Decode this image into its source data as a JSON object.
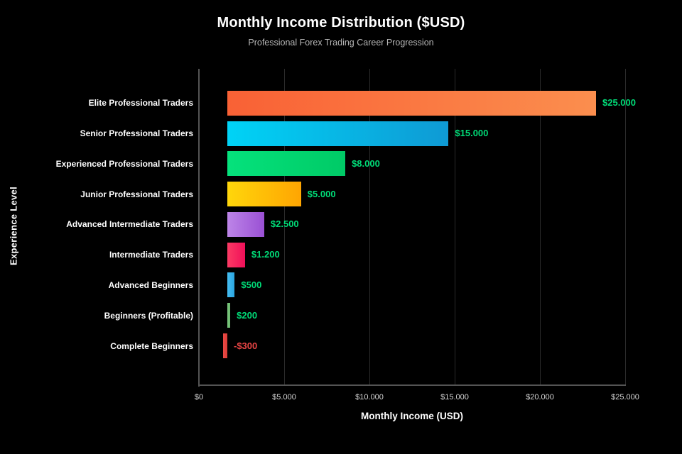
{
  "chart_data": {
    "type": "bar",
    "orientation": "horizontal",
    "title": "Monthly Income Distribution ($USD)",
    "subtitle": "Professional Forex Trading Career Progression",
    "xlabel": "Monthly Income (USD)",
    "ylabel": "Experience Level",
    "xlim": [
      0,
      25000
    ],
    "grid": "vertical-only",
    "background_color": "#000000",
    "positive_label_color": "#00db77",
    "negative_label_color": "#ea4545",
    "x_ticks": [
      {
        "value": 0,
        "label": "$0"
      },
      {
        "value": 5000,
        "label": "$5.000"
      },
      {
        "value": 10000,
        "label": "$10.000"
      },
      {
        "value": 15000,
        "label": "$15.000"
      },
      {
        "value": 20000,
        "label": "$20.000"
      },
      {
        "value": 25000,
        "label": "$25.000"
      }
    ],
    "items": [
      {
        "label": "Elite Professional Traders",
        "value": 25000,
        "value_label": "$25.000",
        "color_start": "#f96135",
        "color_end": "#fb8e4e"
      },
      {
        "label": "Senior Professional Traders",
        "value": 15000,
        "value_label": "$15.000",
        "color_start": "#00d3f6",
        "color_end": "#0f9ad4"
      },
      {
        "label": "Experienced Professional Traders",
        "value": 8000,
        "value_label": "$8.000",
        "color_start": "#05e27c",
        "color_end": "#00ca66"
      },
      {
        "label": "Junior Professional Traders",
        "value": 5000,
        "value_label": "$5.000",
        "color_start": "#ffd60b",
        "color_end": "#ffa502"
      },
      {
        "label": "Advanced Intermediate Traders",
        "value": 2500,
        "value_label": "$2.500",
        "color_start": "#bd85e8",
        "color_end": "#9a50d4"
      },
      {
        "label": "Intermediate Traders",
        "value": 1200,
        "value_label": "$1.200",
        "color_start": "#fb3a64",
        "color_end": "#f00f59"
      },
      {
        "label": "Advanced Beginners",
        "value": 500,
        "value_label": "$500",
        "color_start": "#45bdf2",
        "color_end": "#2ba6e0"
      },
      {
        "label": "Beginners (Profitable)",
        "value": 200,
        "value_label": "$200",
        "color_start": "#7cc87f",
        "color_end": "#6cbb6f"
      },
      {
        "label": "Complete Beginners",
        "value": -300,
        "value_label": "-$300",
        "color_start": "#ea4a45",
        "color_end": "#dd3c38"
      }
    ]
  }
}
